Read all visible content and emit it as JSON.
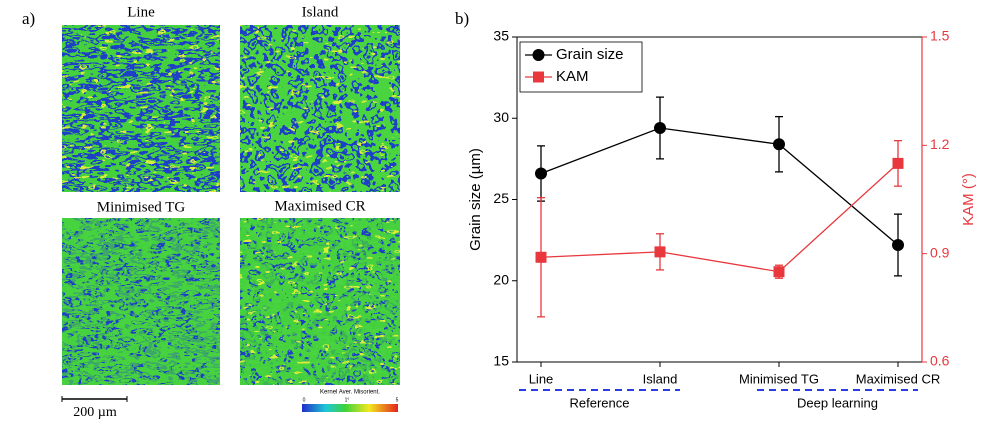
{
  "figure": {
    "panel_a_label": "a)",
    "panel_b_label": "b)",
    "map_titles": [
      "Line",
      "Island",
      "Minimised TG",
      "Maximised CR"
    ],
    "scale_bar": "200 µm",
    "colorbar_title": "Kernel Aver. Misorient.",
    "colorbar_labels": [
      "0",
      "1°",
      "5"
    ]
  },
  "chart_data": {
    "type": "line",
    "categories": [
      "Line",
      "Island",
      "Minimised TG",
      "Maximised CR"
    ],
    "series": [
      {
        "name": "Grain size",
        "color": "#000000",
        "marker": "circle",
        "values": [
          26.6,
          29.4,
          28.4,
          22.2
        ],
        "errors": [
          1.7,
          1.9,
          1.7,
          1.9
        ]
      },
      {
        "name": "KAM",
        "color": "#e8383d",
        "marker": "square",
        "axis": "y2",
        "values": [
          0.89,
          0.905,
          0.85,
          1.15
        ],
        "errors": [
          0.165,
          0.05,
          0.018,
          0.063
        ]
      }
    ],
    "y_label": "Grain size (µm)",
    "y2_label": "KAM (°)",
    "ylim": [
      15,
      35
    ],
    "yticks": [
      15,
      20,
      25,
      30,
      35
    ],
    "y2lim": [
      0.6,
      1.5
    ],
    "y2ticks": [
      0.6,
      0.9,
      1.2,
      1.5
    ],
    "groups": [
      "Reference",
      "Deep learning"
    ],
    "legend": "upper left"
  }
}
